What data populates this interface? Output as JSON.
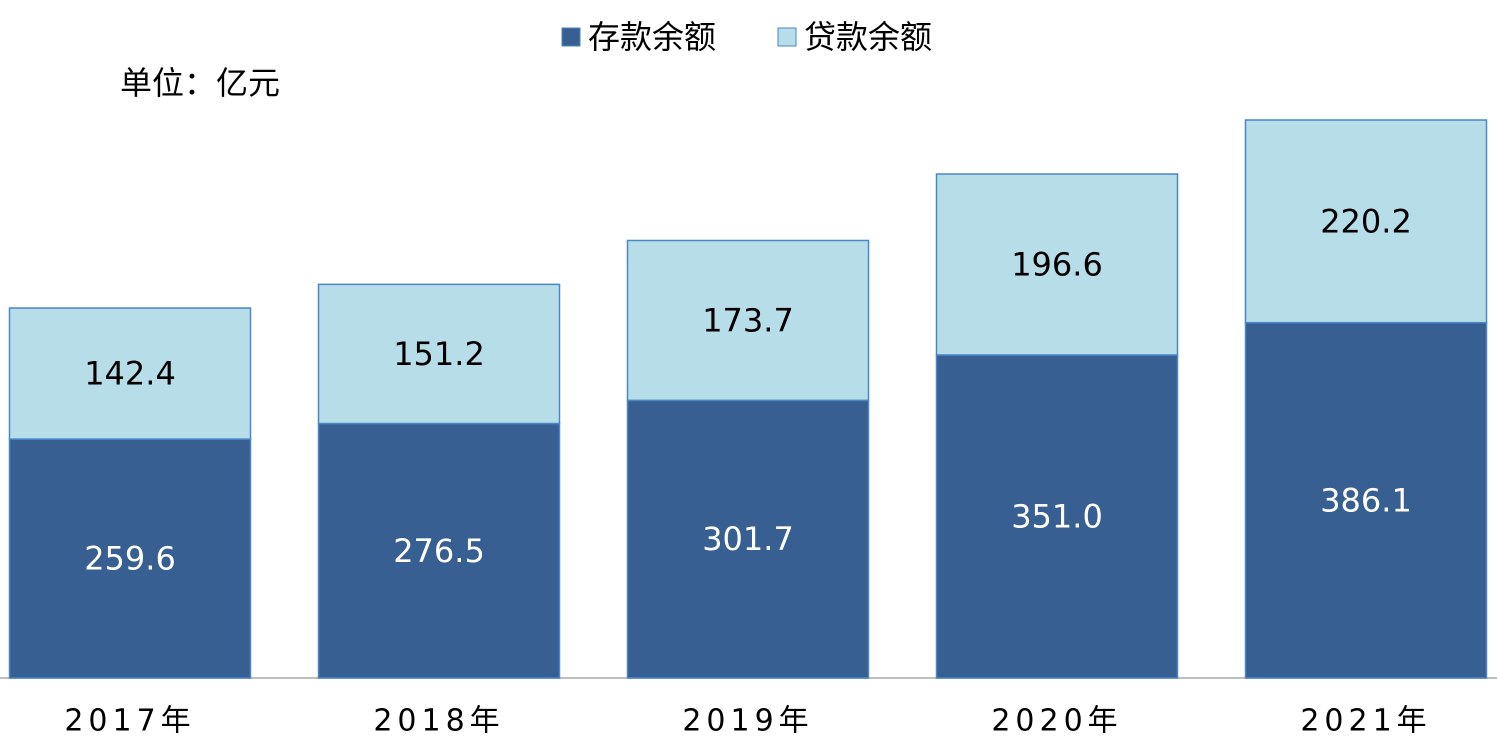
{
  "chart_data": {
    "type": "stacked-bar",
    "subtitle": "单位：亿元",
    "categories": [
      "2017年",
      "2018年",
      "2019年",
      "2020年",
      "2021年"
    ],
    "series": [
      {
        "name": "存款余额",
        "color": "#375f91",
        "values": [
          259.6,
          276.5,
          301.7,
          351.0,
          386.1
        ],
        "value_labels": [
          "259.6",
          "276.5",
          "301.7",
          "351.0",
          "386.1"
        ]
      },
      {
        "name": "贷款余额",
        "color": "#b7dde8",
        "values": [
          142.4,
          151.2,
          173.7,
          196.6,
          220.2
        ],
        "value_labels": [
          "142.4",
          "151.2",
          "173.7",
          "196.6",
          "220.2"
        ]
      }
    ],
    "legend": "top"
  }
}
